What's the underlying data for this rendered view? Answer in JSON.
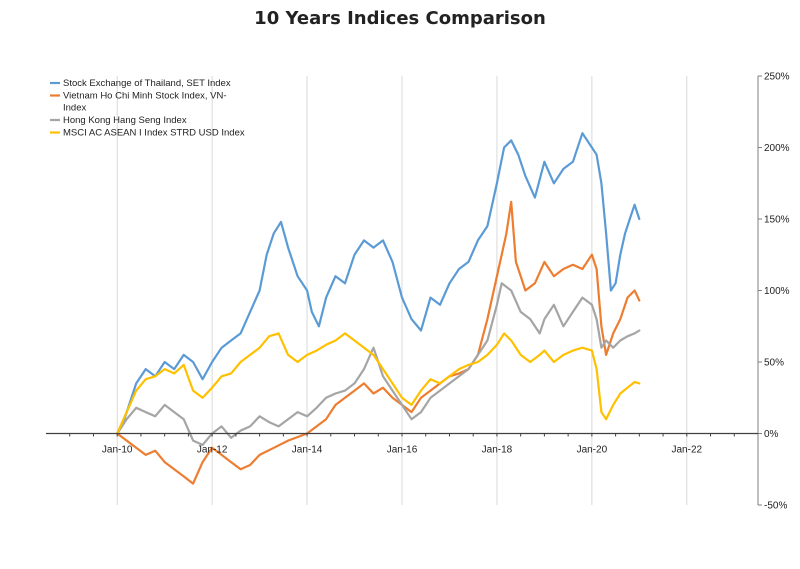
{
  "chart_data": {
    "type": "line",
    "title": "10 Years Indices Comparison",
    "xlabel": "",
    "ylabel": "",
    "x_ticks": [
      "Jan-10",
      "Jan-12",
      "Jan-14",
      "Jan-16",
      "Jan-18",
      "Jan-20",
      "Jan-22"
    ],
    "x_tick_values": [
      2010,
      2012,
      2014,
      2016,
      2018,
      2020,
      2022
    ],
    "xlim": [
      2008.5,
      2023.5
    ],
    "y_ticks": [
      "250%",
      "200%",
      "150%",
      "100%",
      "50%",
      "0%",
      "-50%"
    ],
    "y_tick_values": [
      250,
      200,
      150,
      100,
      50,
      0,
      -50
    ],
    "ylim": [
      -50,
      250
    ],
    "grid": "vertical",
    "legend_position": "top-left",
    "legend_entries": [
      {
        "name": "Stock Exchange of Thailand, SET Index",
        "lines": [
          "Stock Exchange of Thailand, SET Index"
        ]
      },
      {
        "name": "Vietnam Ho Chi Minh Stock Index, VN-Index",
        "lines": [
          "Vietnam Ho Chi Minh Stock Index, VN-",
          "Index"
        ]
      },
      {
        "name": "Hong Kong Hang Seng Index",
        "lines": [
          "Hong Kong Hang Seng Index"
        ]
      },
      {
        "name": "MSCI AC ASEAN I Index STRD USD Index",
        "lines": [
          "MSCI AC ASEAN I Index STRD USD Index"
        ]
      }
    ],
    "series": [
      {
        "name": "Stock Exchange of Thailand, SET Index",
        "color": "#5B9BD5",
        "points": [
          [
            2010.0,
            0
          ],
          [
            2010.1,
            5
          ],
          [
            2010.25,
            20
          ],
          [
            2010.4,
            35
          ],
          [
            2010.6,
            45
          ],
          [
            2010.8,
            40
          ],
          [
            2011.0,
            50
          ],
          [
            2011.2,
            45
          ],
          [
            2011.4,
            55
          ],
          [
            2011.6,
            50
          ],
          [
            2011.8,
            38
          ],
          [
            2012.0,
            50
          ],
          [
            2012.2,
            60
          ],
          [
            2012.4,
            65
          ],
          [
            2012.6,
            70
          ],
          [
            2012.8,
            85
          ],
          [
            2013.0,
            100
          ],
          [
            2013.15,
            125
          ],
          [
            2013.3,
            140
          ],
          [
            2013.45,
            148
          ],
          [
            2013.6,
            130
          ],
          [
            2013.8,
            110
          ],
          [
            2014.0,
            100
          ],
          [
            2014.1,
            85
          ],
          [
            2014.25,
            75
          ],
          [
            2014.4,
            95
          ],
          [
            2014.6,
            110
          ],
          [
            2014.8,
            105
          ],
          [
            2015.0,
            125
          ],
          [
            2015.2,
            135
          ],
          [
            2015.4,
            130
          ],
          [
            2015.6,
            135
          ],
          [
            2015.8,
            120
          ],
          [
            2016.0,
            95
          ],
          [
            2016.2,
            80
          ],
          [
            2016.4,
            72
          ],
          [
            2016.6,
            95
          ],
          [
            2016.8,
            90
          ],
          [
            2017.0,
            105
          ],
          [
            2017.2,
            115
          ],
          [
            2017.4,
            120
          ],
          [
            2017.6,
            135
          ],
          [
            2017.8,
            145
          ],
          [
            2018.0,
            175
          ],
          [
            2018.15,
            200
          ],
          [
            2018.3,
            205
          ],
          [
            2018.45,
            195
          ],
          [
            2018.6,
            180
          ],
          [
            2018.8,
            165
          ],
          [
            2019.0,
            190
          ],
          [
            2019.2,
            175
          ],
          [
            2019.4,
            185
          ],
          [
            2019.6,
            190
          ],
          [
            2019.8,
            210
          ],
          [
            2020.0,
            200
          ],
          [
            2020.1,
            195
          ],
          [
            2020.2,
            175
          ],
          [
            2020.3,
            140
          ],
          [
            2020.4,
            100
          ],
          [
            2020.5,
            105
          ],
          [
            2020.6,
            125
          ],
          [
            2020.7,
            140
          ],
          [
            2020.8,
            150
          ],
          [
            2020.9,
            160
          ],
          [
            2021.0,
            150
          ]
        ]
      },
      {
        "name": "Vietnam Ho Chi Minh Stock Index, VN-Index",
        "color": "#ED7D31",
        "points": [
          [
            2010.0,
            0
          ],
          [
            2010.2,
            -5
          ],
          [
            2010.4,
            -10
          ],
          [
            2010.6,
            -15
          ],
          [
            2010.8,
            -12
          ],
          [
            2011.0,
            -20
          ],
          [
            2011.2,
            -25
          ],
          [
            2011.4,
            -30
          ],
          [
            2011.6,
            -35
          ],
          [
            2011.8,
            -20
          ],
          [
            2012.0,
            -10
          ],
          [
            2012.2,
            -15
          ],
          [
            2012.4,
            -20
          ],
          [
            2012.6,
            -25
          ],
          [
            2012.8,
            -22
          ],
          [
            2013.0,
            -15
          ],
          [
            2013.3,
            -10
          ],
          [
            2013.6,
            -5
          ],
          [
            2014.0,
            0
          ],
          [
            2014.2,
            5
          ],
          [
            2014.4,
            10
          ],
          [
            2014.6,
            20
          ],
          [
            2014.8,
            25
          ],
          [
            2015.0,
            30
          ],
          [
            2015.2,
            35
          ],
          [
            2015.4,
            28
          ],
          [
            2015.6,
            32
          ],
          [
            2015.8,
            25
          ],
          [
            2016.0,
            20
          ],
          [
            2016.2,
            15
          ],
          [
            2016.4,
            25
          ],
          [
            2016.6,
            30
          ],
          [
            2016.8,
            35
          ],
          [
            2017.0,
            40
          ],
          [
            2017.2,
            42
          ],
          [
            2017.4,
            45
          ],
          [
            2017.6,
            55
          ],
          [
            2017.8,
            80
          ],
          [
            2018.0,
            110
          ],
          [
            2018.1,
            125
          ],
          [
            2018.2,
            140
          ],
          [
            2018.3,
            162
          ],
          [
            2018.4,
            120
          ],
          [
            2018.5,
            110
          ],
          [
            2018.6,
            100
          ],
          [
            2018.8,
            105
          ],
          [
            2019.0,
            120
          ],
          [
            2019.2,
            110
          ],
          [
            2019.4,
            115
          ],
          [
            2019.6,
            118
          ],
          [
            2019.8,
            115
          ],
          [
            2020.0,
            125
          ],
          [
            2020.1,
            115
          ],
          [
            2020.2,
            75
          ],
          [
            2020.3,
            55
          ],
          [
            2020.45,
            70
          ],
          [
            2020.6,
            80
          ],
          [
            2020.75,
            95
          ],
          [
            2020.9,
            100
          ],
          [
            2021.0,
            93
          ]
        ]
      },
      {
        "name": "Hong Kong Hang Seng Index",
        "color": "#A5A5A5",
        "points": [
          [
            2010.0,
            0
          ],
          [
            2010.2,
            10
          ],
          [
            2010.4,
            18
          ],
          [
            2010.6,
            15
          ],
          [
            2010.8,
            12
          ],
          [
            2011.0,
            20
          ],
          [
            2011.2,
            15
          ],
          [
            2011.4,
            10
          ],
          [
            2011.6,
            -5
          ],
          [
            2011.8,
            -8
          ],
          [
            2012.0,
            0
          ],
          [
            2012.2,
            5
          ],
          [
            2012.4,
            -3
          ],
          [
            2012.6,
            2
          ],
          [
            2012.8,
            5
          ],
          [
            2013.0,
            12
          ],
          [
            2013.2,
            8
          ],
          [
            2013.4,
            5
          ],
          [
            2013.6,
            10
          ],
          [
            2013.8,
            15
          ],
          [
            2014.0,
            12
          ],
          [
            2014.2,
            18
          ],
          [
            2014.4,
            25
          ],
          [
            2014.6,
            28
          ],
          [
            2014.8,
            30
          ],
          [
            2015.0,
            35
          ],
          [
            2015.2,
            45
          ],
          [
            2015.4,
            60
          ],
          [
            2015.6,
            40
          ],
          [
            2015.8,
            30
          ],
          [
            2016.0,
            20
          ],
          [
            2016.2,
            10
          ],
          [
            2016.4,
            15
          ],
          [
            2016.6,
            25
          ],
          [
            2016.8,
            30
          ],
          [
            2017.0,
            35
          ],
          [
            2017.2,
            40
          ],
          [
            2017.4,
            45
          ],
          [
            2017.6,
            55
          ],
          [
            2017.8,
            65
          ],
          [
            2018.0,
            90
          ],
          [
            2018.1,
            105
          ],
          [
            2018.3,
            100
          ],
          [
            2018.5,
            85
          ],
          [
            2018.7,
            80
          ],
          [
            2018.9,
            70
          ],
          [
            2019.0,
            80
          ],
          [
            2019.2,
            90
          ],
          [
            2019.4,
            75
          ],
          [
            2019.6,
            85
          ],
          [
            2019.8,
            95
          ],
          [
            2020.0,
            90
          ],
          [
            2020.1,
            80
          ],
          [
            2020.2,
            60
          ],
          [
            2020.3,
            65
          ],
          [
            2020.45,
            60
          ],
          [
            2020.6,
            65
          ],
          [
            2020.75,
            68
          ],
          [
            2020.9,
            70
          ],
          [
            2021.0,
            72
          ]
        ]
      },
      {
        "name": "MSCI AC ASEAN I Index STRD USD Index",
        "color": "#FFC000",
        "points": [
          [
            2010.0,
            0
          ],
          [
            2010.2,
            15
          ],
          [
            2010.4,
            30
          ],
          [
            2010.6,
            38
          ],
          [
            2010.8,
            40
          ],
          [
            2011.0,
            45
          ],
          [
            2011.2,
            42
          ],
          [
            2011.4,
            48
          ],
          [
            2011.6,
            30
          ],
          [
            2011.8,
            25
          ],
          [
            2012.0,
            32
          ],
          [
            2012.2,
            40
          ],
          [
            2012.4,
            42
          ],
          [
            2012.6,
            50
          ],
          [
            2012.8,
            55
          ],
          [
            2013.0,
            60
          ],
          [
            2013.2,
            68
          ],
          [
            2013.4,
            70
          ],
          [
            2013.6,
            55
          ],
          [
            2013.8,
            50
          ],
          [
            2014.0,
            55
          ],
          [
            2014.2,
            58
          ],
          [
            2014.4,
            62
          ],
          [
            2014.6,
            65
          ],
          [
            2014.8,
            70
          ],
          [
            2015.0,
            65
          ],
          [
            2015.2,
            60
          ],
          [
            2015.4,
            55
          ],
          [
            2015.6,
            45
          ],
          [
            2015.8,
            35
          ],
          [
            2016.0,
            25
          ],
          [
            2016.2,
            20
          ],
          [
            2016.4,
            30
          ],
          [
            2016.6,
            38
          ],
          [
            2016.8,
            35
          ],
          [
            2017.0,
            40
          ],
          [
            2017.2,
            45
          ],
          [
            2017.4,
            48
          ],
          [
            2017.6,
            50
          ],
          [
            2017.8,
            55
          ],
          [
            2018.0,
            62
          ],
          [
            2018.15,
            70
          ],
          [
            2018.3,
            65
          ],
          [
            2018.5,
            55
          ],
          [
            2018.7,
            50
          ],
          [
            2018.9,
            55
          ],
          [
            2019.0,
            58
          ],
          [
            2019.2,
            50
          ],
          [
            2019.4,
            55
          ],
          [
            2019.6,
            58
          ],
          [
            2019.8,
            60
          ],
          [
            2020.0,
            58
          ],
          [
            2020.1,
            45
          ],
          [
            2020.2,
            15
          ],
          [
            2020.3,
            10
          ],
          [
            2020.45,
            20
          ],
          [
            2020.6,
            28
          ],
          [
            2020.75,
            32
          ],
          [
            2020.9,
            36
          ],
          [
            2021.0,
            35
          ]
        ]
      }
    ]
  }
}
